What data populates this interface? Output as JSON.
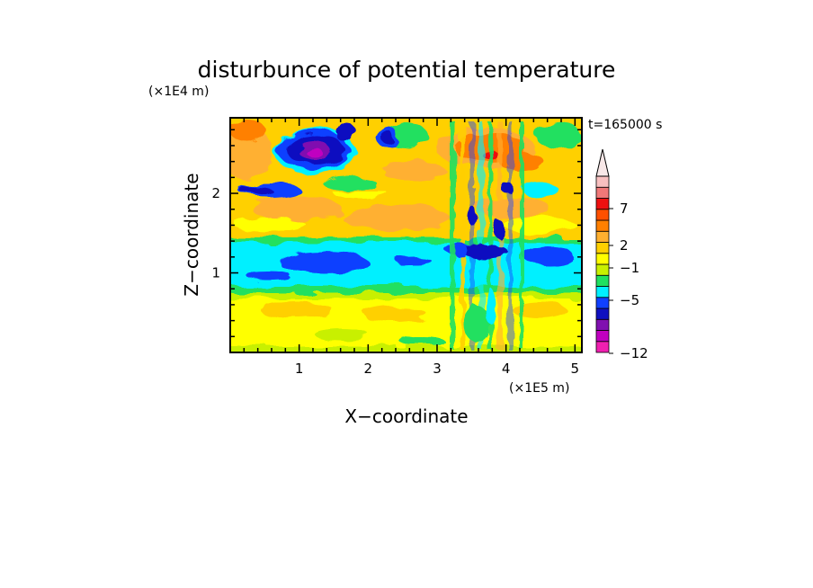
{
  "chart_data": {
    "type": "heatmap",
    "title": "disturbunce of potential temperature",
    "time_label": "t=165000 s",
    "xlabel": "X−coordinate",
    "ylabel": "Z−coordinate",
    "x_unit": "(×1E5 m)",
    "y_unit": "(×1E4 m)",
    "xlim": [
      0,
      5.1
    ],
    "ylim": [
      0,
      2.95
    ],
    "x_ticks": [
      "1",
      "2",
      "3",
      "4",
      "5"
    ],
    "y_ticks": [
      "1",
      "2"
    ],
    "colorbar": {
      "labeled_levels": [
        "7",
        "2",
        "−1",
        "−5",
        "−12"
      ],
      "colors": [
        "#f020b0",
        "#c000c0",
        "#8010b0",
        "#1010c0",
        "#1040ff",
        "#00f0ff",
        "#20e060",
        "#c8f000",
        "#ffff00",
        "#ffd000",
        "#ffb030",
        "#ff8000",
        "#ff5000",
        "#ee1010",
        "#f07878",
        "#f8c0c0"
      ],
      "over_arrow": true
    },
    "bands": [
      {
        "z_range": [
          0.0,
          0.75
        ],
        "dominant": "slightly positive (yellow/orange)"
      },
      {
        "z_range": [
          0.75,
          1.0
        ],
        "dominant": "near zero (green)"
      },
      {
        "z_range": [
          1.0,
          1.45
        ],
        "dominant": "negative (cyan, blue patches)"
      },
      {
        "z_range": [
          1.45,
          2.15
        ],
        "dominant": "positive (yellow/orange)"
      },
      {
        "z_range": [
          2.15,
          2.95
        ],
        "dominant": "mixed; strong negative near x=1.2, positive near x=3.8"
      }
    ]
  }
}
